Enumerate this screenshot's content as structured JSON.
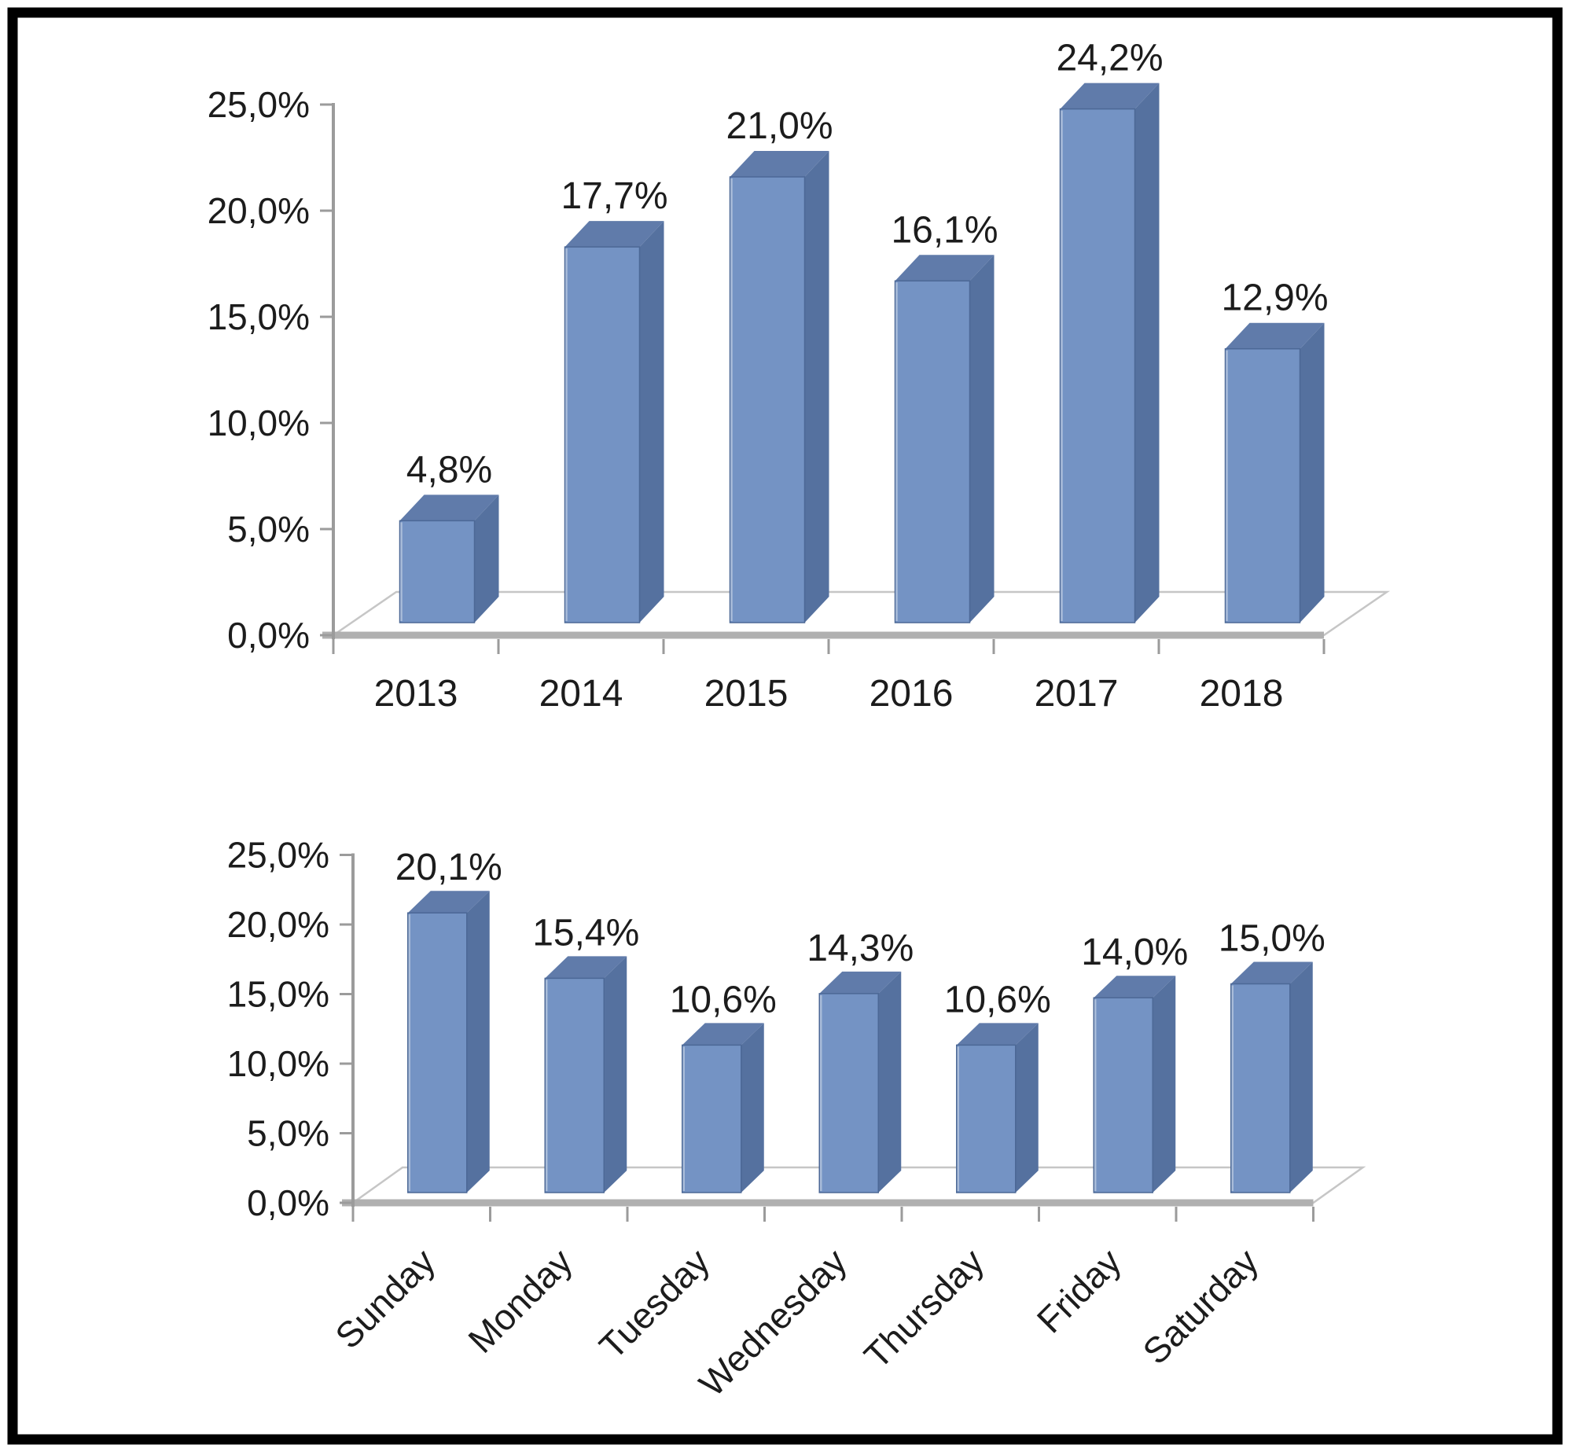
{
  "figure": {
    "background": "#ffffff",
    "frame_color": "#000000"
  },
  "colors": {
    "bar_front": "#7493c4",
    "bar_side": "#55719f",
    "bar_top": "#607baa",
    "bar_outline": "#4c6896",
    "bar_highlight": "#a9bcd9",
    "axis_line": "#9b9b9b",
    "baseline": "#b0b0b0",
    "floor_line": "#c6c6c6",
    "text": "#1c1c1c"
  },
  "chart_data": [
    {
      "type": "bar",
      "style": "3d-column",
      "title": "",
      "xlabel": "",
      "ylabel": "",
      "categories": [
        "2013",
        "2014",
        "2015",
        "2016",
        "2017",
        "2018"
      ],
      "values": [
        4.8,
        17.7,
        21.0,
        16.1,
        24.2,
        12.9
      ],
      "value_labels": [
        "4,8%",
        "17,7%",
        "21,0%",
        "16,1%",
        "24,2%",
        "12,9%"
      ],
      "y_tick_values": [
        25,
        20,
        15,
        10,
        5,
        0
      ],
      "y_tick_labels": [
        "25,0%",
        "20,0%",
        "15,0%",
        "10,0%",
        "5,0%",
        "0,0%"
      ],
      "ylim": [
        0,
        25
      ],
      "grid": false,
      "legend": false,
      "category_label_rotation": 0
    },
    {
      "type": "bar",
      "style": "3d-column",
      "title": "",
      "xlabel": "",
      "ylabel": "",
      "categories": [
        "Sunday",
        "Monday",
        "Tuesday",
        "Wednesday",
        "Thursday",
        "Friday",
        "Saturday"
      ],
      "values": [
        20.1,
        15.4,
        10.6,
        14.3,
        10.6,
        14.0,
        15.0
      ],
      "value_labels": [
        "20,1%",
        "15,4%",
        "10,6%",
        "14,3%",
        "10,6%",
        "14,0%",
        "15,0%"
      ],
      "y_tick_values": [
        25,
        20,
        15,
        10,
        5,
        0
      ],
      "y_tick_labels": [
        "25,0%",
        "20,0%",
        "15,0%",
        "10,0%",
        "5,0%",
        "0,0%"
      ],
      "ylim": [
        0,
        25
      ],
      "grid": false,
      "legend": false,
      "category_label_rotation": -45
    }
  ]
}
